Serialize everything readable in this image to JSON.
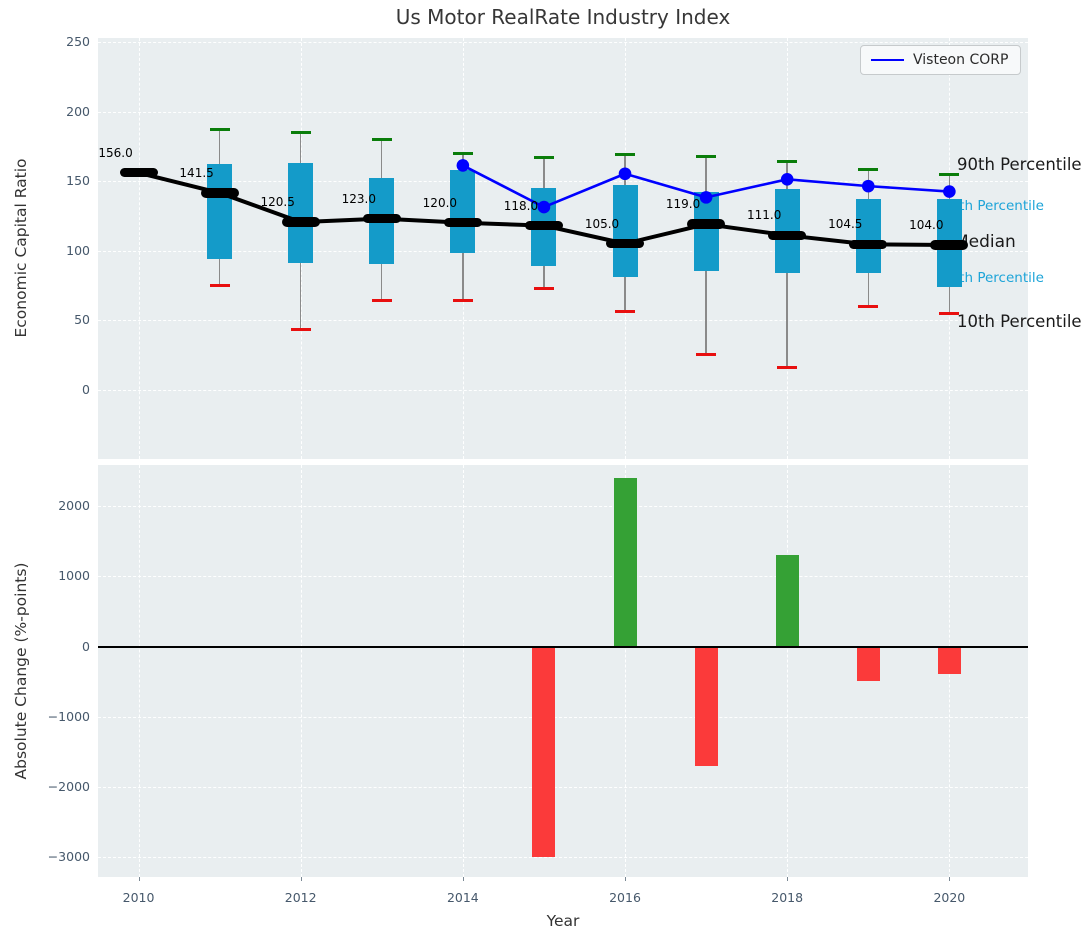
{
  "title": "Us Motor RealRate Industry Index",
  "legend": {
    "label": "Visteon CORP",
    "line_color": "#0000ff"
  },
  "annotations": {
    "p90": "90th Percentile",
    "p75": "75th Percentile",
    "median": "Median",
    "p25": "25th Percentile",
    "p10": "10th Percentile"
  },
  "axes": {
    "top": {
      "ylabel": "Economic Capital Ratio",
      "ytick_labels": [
        "250",
        "200",
        "150",
        "100",
        "50",
        "0"
      ],
      "ytick_values": [
        250,
        200,
        150,
        100,
        50,
        0
      ]
    },
    "bottom": {
      "ylabel": "Absolute Change (%-points)",
      "ytick_labels": [
        "2000",
        "1000",
        "0",
        "−1000",
        "−2000",
        "−3000"
      ],
      "ytick_values": [
        2000,
        1000,
        0,
        -1000,
        -2000,
        -3000
      ],
      "xlabel": "Year",
      "xtick_labels": [
        "2010",
        "2012",
        "2014",
        "2016",
        "2018",
        "2020"
      ],
      "xtick_values": [
        2010,
        2012,
        2014,
        2016,
        2018,
        2020
      ]
    }
  },
  "colors": {
    "panel_bg": "#e9eef0",
    "box_fill": "#149bc9",
    "cap_high": "#0a7d0a",
    "cap_low": "#e80f0f",
    "median": "#000000",
    "whisker": "#8a8a8a",
    "visteon_line": "#0000ff",
    "bar_positive": "#35a135",
    "bar_negative": "#fb3a3a",
    "annot_cyan": "#1da4d8",
    "annot_black": "#1a1a1a"
  },
  "chart_data": [
    {
      "type": "boxplot-percentiles-with-line",
      "title": "Us Motor RealRate Industry Index",
      "ylabel": "Economic Capital Ratio",
      "x": [
        2010,
        2011,
        2012,
        2013,
        2014,
        2015,
        2016,
        2017,
        2018,
        2019,
        2020
      ],
      "median": [
        156.0,
        141.5,
        120.5,
        123.0,
        120.0,
        118.0,
        105.0,
        119.0,
        111.0,
        104.5,
        104.0
      ],
      "median_labels": [
        "156.0",
        "141.5",
        "120.5",
        "123.0",
        "120.0",
        "118.0",
        "105.0",
        "119.0",
        "111.0",
        "104.5",
        "104.0"
      ],
      "p90": [
        null,
        187,
        185,
        180,
        170,
        167,
        169,
        168,
        164,
        158,
        155
      ],
      "p75": [
        null,
        162,
        163,
        152,
        158,
        145,
        147,
        142,
        144,
        137,
        137
      ],
      "p25": [
        null,
        94,
        91,
        90,
        98,
        89,
        81,
        85,
        84,
        84,
        74
      ],
      "p10": [
        null,
        75,
        43,
        64,
        64,
        73,
        56,
        25,
        16,
        60,
        55
      ],
      "series": [
        {
          "name": "Visteon CORP",
          "x": [
            2014,
            2015,
            2016,
            2017,
            2018,
            2019,
            2020
          ],
          "values": [
            161.3,
            131.3,
            155.3,
            138.3,
            151.3,
            146.4,
            142.5
          ]
        }
      ],
      "xlim": [
        2009.5,
        2020.97
      ],
      "ylim": [
        -50,
        253
      ],
      "grid": true,
      "legend_position": "upper right"
    },
    {
      "type": "bar",
      "ylabel": "Absolute Change (%-points)",
      "xlabel": "Year",
      "categories": [
        2015,
        2016,
        2017,
        2018,
        2019,
        2020
      ],
      "values": [
        -3000,
        2400,
        -1700,
        1300,
        -490,
        -390
      ],
      "xlim": [
        2009.5,
        2020.97
      ],
      "ylim": [
        -3280,
        2588
      ],
      "grid": true
    }
  ]
}
